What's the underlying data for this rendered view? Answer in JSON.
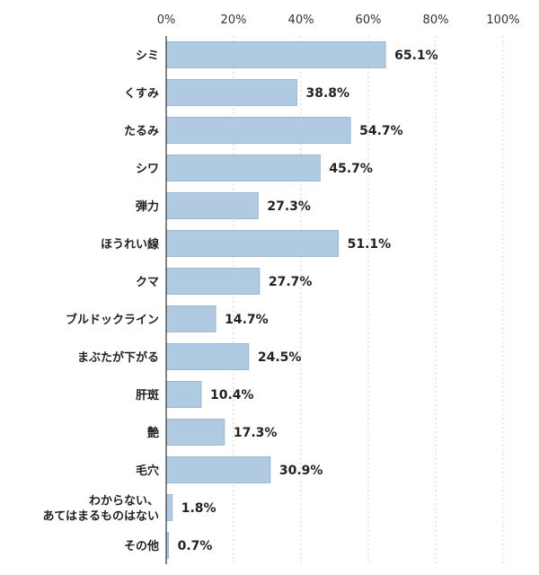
{
  "chart_data": {
    "type": "bar",
    "orientation": "horizontal",
    "categories": [
      "シミ",
      "くすみ",
      "たるみ",
      "シワ",
      "弾力",
      "ほうれい線",
      "クマ",
      "ブルドックライン",
      "まぶたが下がる",
      "肝斑",
      "艶",
      "毛穴",
      "わからない、\nあてはまるものはない",
      "その他"
    ],
    "values": [
      65.1,
      38.8,
      54.7,
      45.7,
      27.3,
      51.1,
      27.7,
      14.7,
      24.5,
      10.4,
      17.3,
      30.9,
      1.8,
      0.7
    ],
    "value_labels": [
      "65.1%",
      "38.8%",
      "54.7%",
      "45.7%",
      "27.3%",
      "51.1%",
      "27.7%",
      "14.7%",
      "24.5%",
      "10.4%",
      "17.3%",
      "30.9%",
      "1.8%",
      "0.7%"
    ],
    "xlim": [
      0,
      100
    ],
    "xticks": [
      0,
      20,
      40,
      60,
      80,
      100
    ],
    "xtick_labels": [
      "0%",
      "20%",
      "40%",
      "60%",
      "80%",
      "100%"
    ],
    "x_axis_position": "top",
    "grid": "vertical dashed",
    "bar_color": "#b0cbe1",
    "bar_border_color": "#8fb0cc"
  }
}
